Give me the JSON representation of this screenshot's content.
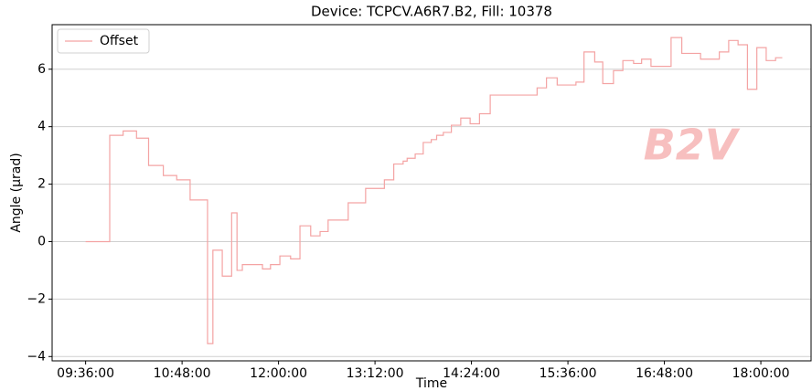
{
  "chart_data": {
    "type": "line",
    "drawstyle": "steps-post",
    "title": "Device: TCPCV.A6R7.B2, Fill: 10378",
    "xlabel": "Time",
    "ylabel": "Angle (μrad)",
    "annotation": "B2V",
    "legend": "upper left",
    "grid": true,
    "x": [
      "09:36:00",
      "09:54:00",
      "10:04:00",
      "10:14:00",
      "10:23:00",
      "10:34:00",
      "10:44:00",
      "10:54:00",
      "11:07:00",
      "11:11:00",
      "11:18:00",
      "11:25:00",
      "11:29:00",
      "11:33:00",
      "11:48:00",
      "11:54:00",
      "12:01:00",
      "12:09:00",
      "12:16:00",
      "12:24:00",
      "12:31:00",
      "12:37:00",
      "12:52:00",
      "13:05:00",
      "13:19:00",
      "13:26:00",
      "13:33:00",
      "13:36:00",
      "13:42:00",
      "13:48:00",
      "13:54:00",
      "13:58:00",
      "14:03:00",
      "14:09:00",
      "14:16:00",
      "14:23:00",
      "14:30:00",
      "14:38:00",
      "15:13:00",
      "15:20:00",
      "15:28:00",
      "15:42:00",
      "15:48:00",
      "15:56:00",
      "16:02:00",
      "16:10:00",
      "16:17:00",
      "16:25:00",
      "16:31:00",
      "16:38:00",
      "16:53:00",
      "17:01:00",
      "17:15:00",
      "17:29:00",
      "17:36:00",
      "17:43:00",
      "17:50:00",
      "17:57:00",
      "18:04:00",
      "18:11:00",
      "18:16:00"
    ],
    "series": [
      {
        "name": "Offset",
        "color": "#f4a3a3",
        "values": [
          0,
          3.7,
          3.85,
          3.6,
          2.65,
          2.3,
          2.15,
          1.45,
          -3.55,
          -0.3,
          -1.2,
          1.0,
          -1.0,
          -0.8,
          -0.95,
          -0.8,
          -0.5,
          -0.6,
          0.55,
          0.2,
          0.35,
          0.75,
          1.35,
          1.85,
          2.15,
          2.7,
          2.8,
          2.9,
          3.05,
          3.45,
          3.55,
          3.7,
          3.8,
          4.05,
          4.3,
          4.1,
          4.45,
          5.1,
          5.35,
          5.7,
          5.45,
          5.55,
          6.6,
          6.25,
          5.5,
          5.95,
          6.3,
          6.2,
          6.35,
          6.1,
          7.1,
          6.55,
          6.35,
          6.6,
          7.0,
          6.85,
          5.3,
          6.75,
          6.3,
          6.4,
          6.4
        ]
      }
    ],
    "xlim": [
      "09:11:00",
      "18:37:30"
    ],
    "xticks": [
      "09:36:00",
      "10:48:00",
      "12:00:00",
      "13:12:00",
      "14:24:00",
      "15:36:00",
      "16:48:00",
      "18:00:00"
    ],
    "ylim": [
      -4.15,
      7.55
    ],
    "yticks": [
      {
        "value": -4,
        "label": "−4"
      },
      {
        "value": -2,
        "label": "−2"
      },
      0,
      2,
      4,
      6
    ]
  }
}
